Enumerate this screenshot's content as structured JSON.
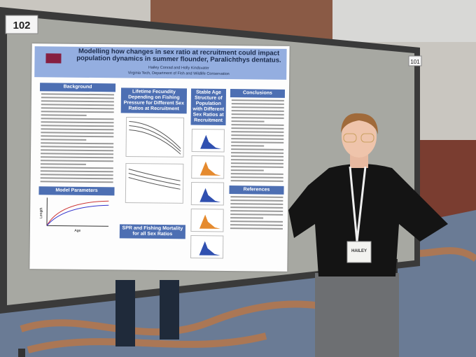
{
  "labels": {
    "board_number_left": "102",
    "board_number_right": "101"
  },
  "poster": {
    "title": "Modelling how changes in sex ratio at recruitment could impact population dynamics in summer flounder, Paralichthys dentatus.",
    "authors": "Hailey Conrad and Holly Kindsvater",
    "affiliation": "Virginia Tech, Department of Fish and Wildlife Conservation",
    "sections": {
      "background": "Background",
      "model_parameters": "Model Parameters",
      "lifetime_fecundity": "Lifetime Fecundity Depending on Fishing Pressure for Different Sex Ratios at Recruitment",
      "stable_age": "Stable Age Structure of Population with Different Sex Ratios at Recruitment",
      "spr": "SPR and Fishing Mortality for all Sex Ratios",
      "conclusions": "Conclusions",
      "references": "References"
    },
    "axis_labels": {
      "length": "Length",
      "age": "Age"
    }
  },
  "badge": {
    "name": "HAILEY"
  }
}
